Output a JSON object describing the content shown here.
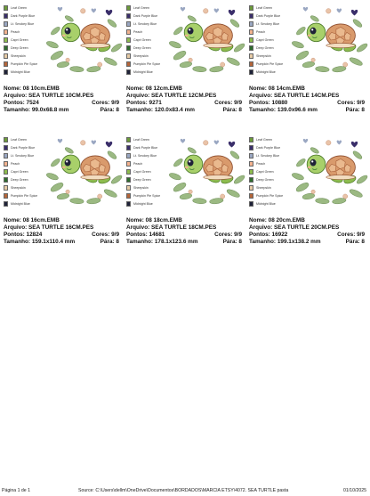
{
  "legend": [
    {
      "name": "Leaf Green",
      "color": "#6c9a3a"
    },
    {
      "name": "Dark Purple Blue",
      "color": "#3a2e6a"
    },
    {
      "name": "Lt. Smokey Blue",
      "color": "#9aa7c2"
    },
    {
      "name": "Peach",
      "color": "#f2b28f"
    },
    {
      "name": "Capri Green",
      "color": "#8dbb4e"
    },
    {
      "name": "Deep Green",
      "color": "#2f6b2e"
    },
    {
      "name": "Sheepskin",
      "color": "#e6cba6"
    },
    {
      "name": "Pumpkin Pie Spice",
      "color": "#b4653a"
    },
    {
      "name": "Midnight Blue",
      "color": "#1f2238"
    }
  ],
  "cards": [
    {
      "nome": "Nome: 08 10cm.EMB",
      "arquivo": "Arquivo: SEA TURTLE 10CM.PES",
      "pontos": "Pontos: 7524",
      "cores": "Cores: 9/9",
      "tamanho": "Tamanho: 99.0x68.8 mm",
      "paras": "Pára: 8"
    },
    {
      "nome": "Nome: 08 12cm.EMB",
      "arquivo": "Arquivo: SEA TURTLE 12CM.PES",
      "pontos": "Pontos: 9271",
      "cores": "Cores: 9/9",
      "tamanho": "Tamanho: 120.0x83.4 mm",
      "paras": "Pára: 8"
    },
    {
      "nome": "Nome: 08 14cm.EMB",
      "arquivo": "Arquivo: SEA TURTLE 14CM.PES",
      "pontos": "Pontos: 10880",
      "cores": "Cores: 9/9",
      "tamanho": "Tamanho: 139.0x96.6 mm",
      "paras": "Pára: 8"
    },
    {
      "nome": "Nome: 08 16cm.EMB",
      "arquivo": "Arquivo: SEA TURTLE 16CM.PES",
      "pontos": "Pontos: 12824",
      "cores": "Cores: 9/9",
      "tamanho": "Tamanho: 159.1x110.4 mm",
      "paras": "Pára: 8"
    },
    {
      "nome": "Nome: 08 18cm.EMB",
      "arquivo": "Arquivo: SEA TURTLE 18CM.PES",
      "pontos": "Pontos: 14681",
      "cores": "Cores: 9/9",
      "tamanho": "Tamanho: 178.1x123.6 mm",
      "paras": "Pára: 8"
    },
    {
      "nome": "Nome: 08 20cm.EMB",
      "arquivo": "Arquivo: SEA TURTLE 20CM.PES",
      "pontos": "Pontos: 16922",
      "cores": "Cores: 9/9",
      "tamanho": "Tamanho: 199.1x138.2 mm",
      "paras": "Pára: 8"
    }
  ],
  "footer": {
    "page": "Página 1 de 1",
    "source": "Source: C:\\Users\\dellm\\OneDrive\\Documentos\\BORDADOS\\MARCIA ETSY\\4072. SEA TURTLE pasta",
    "date": "01/10/2025"
  }
}
